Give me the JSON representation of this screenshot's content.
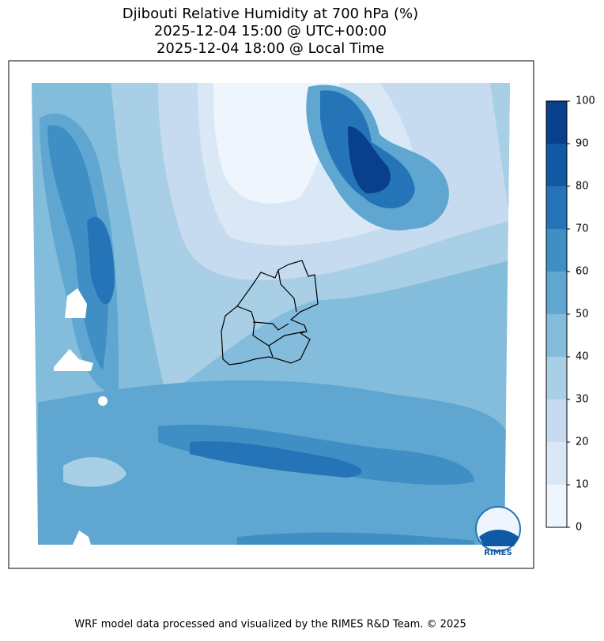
{
  "title": [
    "Djibouti Relative Humidity at 700 hPa (%)",
    "2025-12-04 15:00 @ UTC+00:00",
    "2025-12-04 18:00 @ Local Time"
  ],
  "colorbar": {
    "ticks": [
      0,
      10,
      20,
      30,
      40,
      50,
      60,
      70,
      80,
      90,
      100
    ],
    "colors": [
      "#eef5fc",
      "#dae8f6",
      "#c6dbef",
      "#a8cfe5",
      "#84bcdb",
      "#5fa6d1",
      "#3f8fc4",
      "#2474b7",
      "#0f5aa3",
      "#08408b"
    ]
  },
  "logo": "RIMES",
  "footer": "WRF model data processed and visualized by the RIMES R&D Team. © 2025"
}
